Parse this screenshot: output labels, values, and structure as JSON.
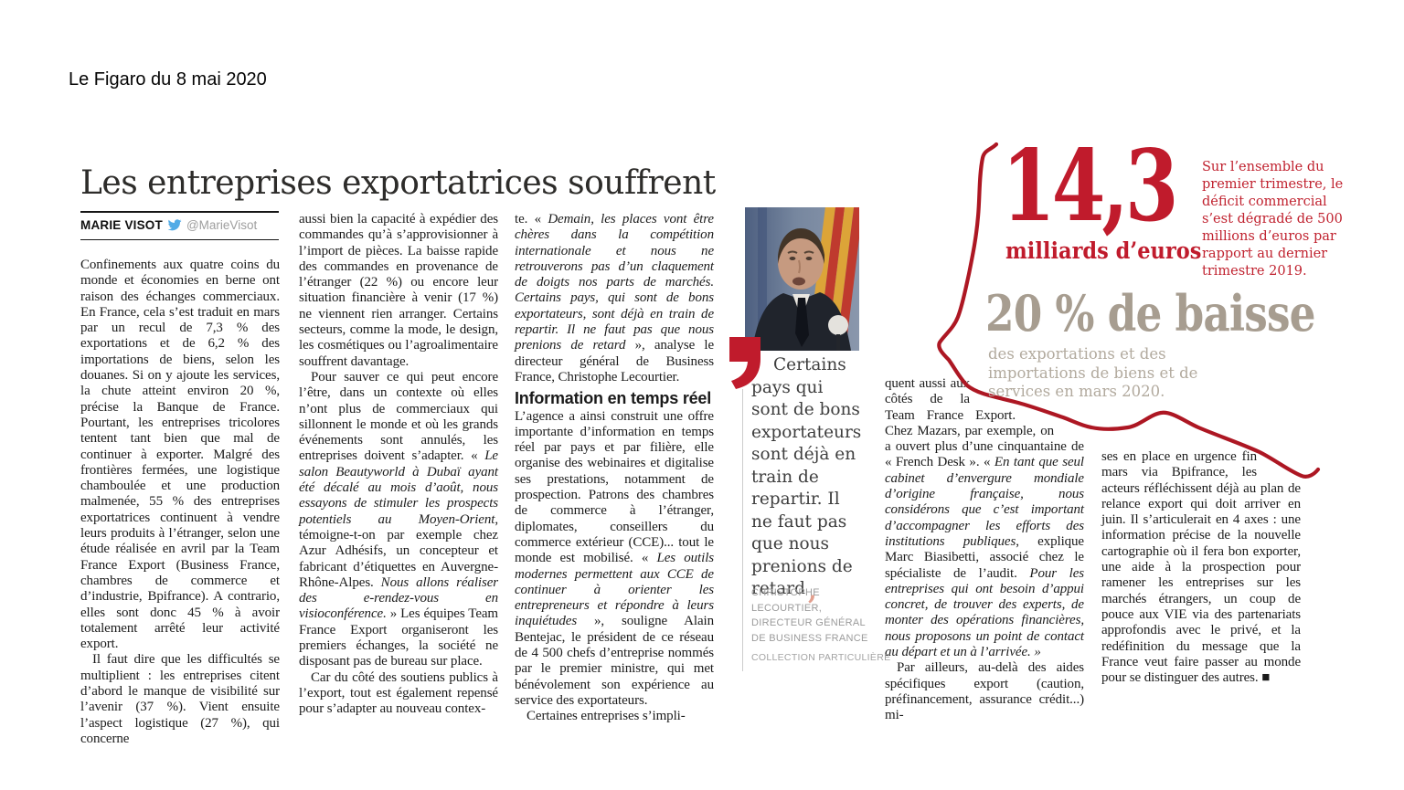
{
  "page": {
    "source_line": "Le Figaro du 8 mai 2020"
  },
  "article": {
    "headline": "Les entreprises exportatrices souffrent",
    "byline": {
      "author": "MARIE VISOT",
      "twitter_handle": "@MarieVisot",
      "twitter_icon": "twitter-bird",
      "twitter_color": "#52abe6"
    },
    "columns": [
      {
        "blocks": [
          {
            "runs": [
              {
                "t": "Confinements aux quatre coins du monde et économies en berne ont raison des échanges commerciaux. En France, cela s’est traduit en mars par un recul de 7,3 % des exportations et de 6,2 % des importations de biens, selon les douanes. Si on y ajoute les services, la chute atteint environ 20 %, précise la Banque de France. Pourtant, les entreprises tricolores tentent tant bien que mal de continuer à exporter. Malgré des frontières fermées, une logistique chamboulée et une production malmenée, 55 % des entreprises exportatrices continuent à vendre leurs produits à l’étranger, selon une étude réalisée en avril par la Team France Export (Business France, chambres de commerce et d’industrie, Bpifrance). A contrario, elles sont donc 45 % à avoir totalement arrêté leur activité export."
              }
            ]
          },
          {
            "indent": true,
            "runs": [
              {
                "t": "Il faut dire que les difficultés se multiplient : les entreprises citent d’abord le manque de visibilité sur l’avenir (37 %). Vient ensuite l’aspect logistique (27 %), qui concerne"
              }
            ]
          }
        ]
      },
      {
        "blocks": [
          {
            "runs": [
              {
                "t": "aussi bien la capacité à expédier des commandes qu’à s’approvisionner à l’import de pièces. La baisse rapide des commandes en provenance de l’étranger (22 %) ou encore leur situation financière à venir (17 %) ne viennent rien arranger. Certains secteurs, comme la mode, le design, les cosmétiques ou l’agroalimentaire souffrent davantage."
              }
            ]
          },
          {
            "indent": true,
            "runs": [
              {
                "t": "Pour sauver ce qui peut encore l’être, dans un contexte où elles n’ont plus de commerciaux qui sillonnent le monde et où les grands événements sont annulés, les entreprises doivent s’adapter. « "
              },
              {
                "t": "Le salon Beautyworld à Dubaï ayant été décalé au mois d’août, nous essayons de stimuler les prospects potentiels au Moyen-Orient",
                "i": true
              },
              {
                "t": ", témoigne-t-on par exemple chez Azur Adhésifs, un concepteur et fabricant d’étiquettes en Auvergne-Rhône-Alpes. "
              },
              {
                "t": "Nous allons réaliser des e-rendez-vous en visioconférence.",
                "i": true
              },
              {
                "t": " » Les équipes Team France Export organiseront les premiers échanges, la société ne disposant pas de bureau sur place."
              }
            ]
          },
          {
            "indent": true,
            "runs": [
              {
                "t": "Car du côté des soutiens publics à l’export, tout est également repensé pour s’adapter au nouveau contex-"
              }
            ]
          }
        ]
      },
      {
        "blocks": [
          {
            "runs": [
              {
                "t": "te. « "
              },
              {
                "t": "Demain, les places vont être chères dans la compétition internationale et nous ne retrouverons pas d’un claquement de doigts nos parts de marchés. Certains pays, qui sont de bons exportateurs, sont déjà en train de repartir. Il ne faut pas que nous prenions de retard",
                "i": true
              },
              {
                "t": " », analyse le directeur général de Business France, Christophe Lecourtier."
              }
            ]
          },
          {
            "type": "subhead",
            "runs": [
              {
                "t": "Information en temps réel"
              }
            ]
          },
          {
            "runs": [
              {
                "t": "L’agence a ainsi construit une offre importante d’information en temps réel par pays et par filière, elle organise des webinaires et digitalise ses prestations, notamment de prospection. Patrons des chambres de commerce à l’étranger, diplomates, conseillers du commerce extérieur (CCE)... tout le monde est mobilisé. « "
              },
              {
                "t": "Les outils modernes permettent aux CCE de continuer à orienter les entrepreneurs et répondre à leurs inquiétudes",
                "i": true
              },
              {
                "t": " », souligne Alain Bentejac, le président de ce réseau de 4 500 chefs d’entreprise nommés par le premier ministre, qui met bénévolement son expérience au service des exportateurs."
              }
            ]
          },
          {
            "indent": true,
            "runs": [
              {
                "t": "Certaines entreprises s’impli-"
              }
            ]
          }
        ]
      },
      {
        "blocks": [
          {
            "runs": [
              {
                "t": "quent aussi aux côtés de la Team France Export. Chez Mazars, par exemple, on a ouvert plus d’une cinquantaine de « French Desk ». « "
              },
              {
                "t": "En tant que seul cabinet d’envergure mondiale d’origine française, nous considérons que c’est important d’accompagner les efforts des institutions publiques",
                "i": true
              },
              {
                "t": ", explique Marc Biasibetti, associé chez le spécialiste de l’audit. "
              },
              {
                "t": "Pour les entreprises qui ont besoin d’appui concret, de trouver des experts, de monter des opérations financières, nous proposons un point de contact au départ et un à l’arrivée. »",
                "i": true
              }
            ]
          },
          {
            "indent": true,
            "runs": [
              {
                "t": "Par ailleurs, au-delà des aides spécifiques export (caution, préfinancement, assurance crédit...) mi-"
              }
            ]
          }
        ]
      },
      {
        "blocks": [
          {
            "runs": [
              {
                "t": "ses en place en urgence fin mars via Bpifrance, les acteurs réfléchissent déjà au plan de relance export qui doit arriver en juin. Il s’articulerait en 4 axes : une information précise de la nouvelle cartographie où il fera bon exporter, une aide à la prospection pour ramener les entreprises sur les marchés étrangers, un coup de pouce aux VIE via des partenariats approfondis avec le privé, et la redéfinition du message que la France veut faire passer au monde pour se distinguer des autres. ■"
              }
            ]
          }
        ]
      }
    ]
  },
  "pull_quote": {
    "text": "Certains pays qui sont de bons exportateurs sont déjà en train de repartir. Il ne faut pas que nous prenions de retard",
    "closing_mark": ",",
    "attribution": "CHRISTOPHE\nLECOURTIER,\nDIRECTEUR GÉNÉRAL\nDE BUSINESS FRANCE",
    "photo_credit": "COLLECTION PARTICULIÈRE",
    "photo_subject": "portrait-christophe-lecourtier"
  },
  "infographic": {
    "big_number": "14,3",
    "big_number_unit": "milliards d’euros",
    "side_note": "Sur l’ensemble du premier trimestre, le déficit commercial s’est dégradé de 500 millions d’euros par rapport au dernier trimestre 2019.",
    "stat": "20 % de baisse",
    "stat_caption": "des exportations et des importations de biens et de services en mars 2020.",
    "colors": {
      "red": "#c01b2c",
      "line_red": "#ad1723",
      "taupe": "#a79d90",
      "taupe_light": "#b2aa9e"
    }
  }
}
